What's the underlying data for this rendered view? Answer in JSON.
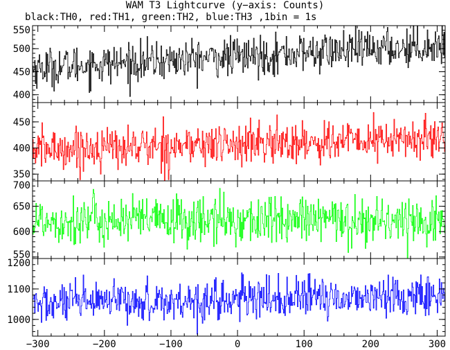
{
  "title": "WAM T3 Lightcurve (y−axis: Counts)",
  "subtitle": "black:TH0, red:TH1, green:TH2, blue:TH3 ,1bin = 1s",
  "chart_data": {
    "type": "line",
    "layout": "stacked-panels",
    "x_range": [
      -308,
      312
    ],
    "x_ticks": [
      -300,
      -200,
      -100,
      0,
      100,
      200,
      300
    ],
    "x_minor_step": 20,
    "bin_seconds": 1,
    "ylabel": "Counts",
    "series": [
      {
        "name": "TH0",
        "color": "#000000",
        "ylim": [
          383,
          550
        ],
        "y_ticks": [
          400,
          450,
          500,
          550
        ],
        "y_minor_step": 10,
        "approx_mean_start": 458,
        "approx_mean_end": 508,
        "approx_noise_sd": 21
      },
      {
        "name": "TH1",
        "color": "#ff0000",
        "ylim": [
          337,
          487
        ],
        "y_ticks": [
          350,
          400,
          450
        ],
        "y_minor_step": 10,
        "approx_mean_start": 397,
        "approx_mean_end": 418,
        "approx_noise_sd": 20
      },
      {
        "name": "TH2",
        "color": "#00ff00",
        "ylim": [
          547,
          700
        ],
        "y_ticks": [
          550,
          600,
          650,
          700
        ],
        "y_minor_step": 10,
        "approx_mean_start": 622,
        "approx_mean_end": 622,
        "approx_noise_sd": 24
      },
      {
        "name": "TH3",
        "color": "#0000ff",
        "ylim": [
          945,
          1200
        ],
        "y_ticks": [
          1000,
          1100,
          1200
        ],
        "y_minor_step": 20,
        "approx_mean_start": 1050,
        "approx_mean_end": 1080,
        "approx_noise_sd": 33
      }
    ]
  }
}
